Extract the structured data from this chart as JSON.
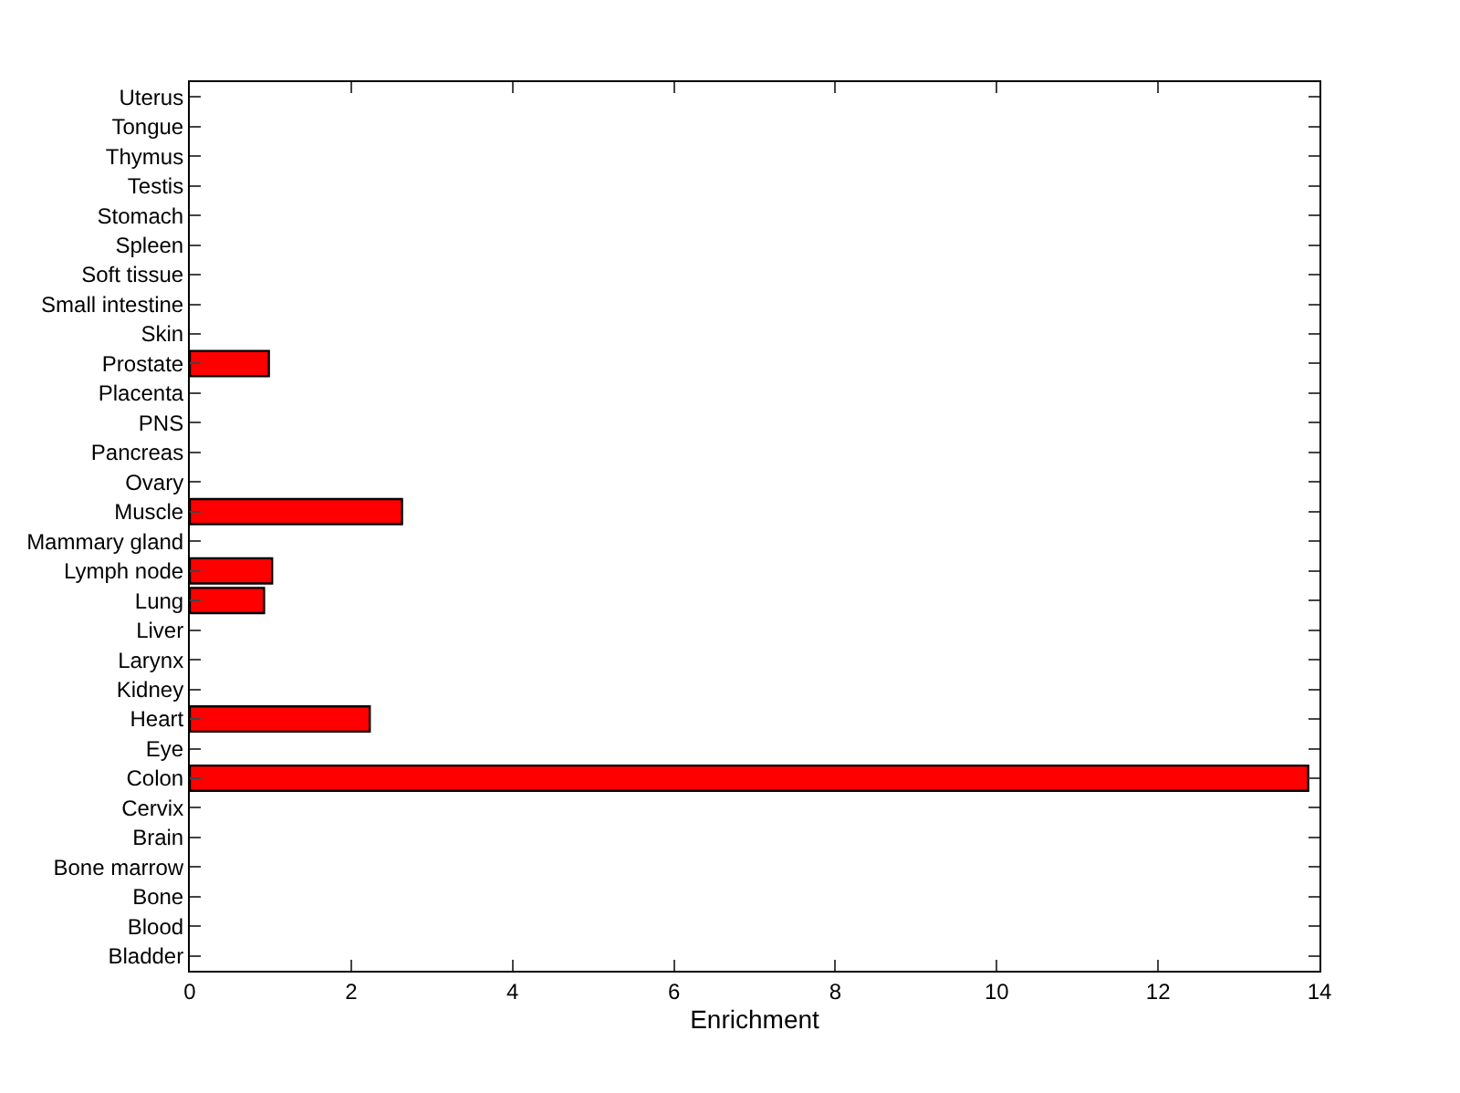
{
  "chart_data": {
    "type": "bar",
    "orientation": "horizontal",
    "xlabel": "Enrichment",
    "categories": [
      "Uterus",
      "Tongue",
      "Thymus",
      "Testis",
      "Stomach",
      "Spleen",
      "Soft tissue",
      "Small intestine",
      "Skin",
      "Prostate",
      "Placenta",
      "PNS",
      "Pancreas",
      "Ovary",
      "Muscle",
      "Mammary gland",
      "Lymph node",
      "Lung",
      "Liver",
      "Larynx",
      "Kidney",
      "Heart",
      "Eye",
      "Colon",
      "Cervix",
      "Brain",
      "Bone marrow",
      "Bone",
      "Blood",
      "Bladder"
    ],
    "values": [
      0,
      0,
      0,
      0,
      0,
      0,
      0,
      0,
      0,
      0.98,
      0,
      0,
      0,
      0,
      2.63,
      0,
      1.02,
      0.92,
      0,
      0,
      0,
      2.23,
      0,
      13.86,
      0,
      0,
      0,
      0,
      0,
      0
    ],
    "color": "#ff0000",
    "xlim": [
      0,
      14
    ],
    "xticks": [
      0,
      2,
      4,
      6,
      8,
      10,
      12,
      14
    ]
  }
}
